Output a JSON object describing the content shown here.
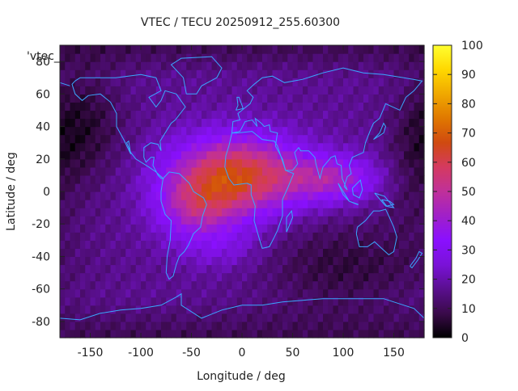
{
  "chart_data": {
    "type": "heatmap",
    "title": "VTEC / TECU 20250912_255.60300",
    "key_label": "'vtec_",
    "xlabel": "Longitude / deg",
    "ylabel": "Latitude / deg",
    "xlim": [
      -180,
      180
    ],
    "ylim": [
      -90,
      90
    ],
    "x_ticks": [
      -150,
      -100,
      -50,
      0,
      50,
      100,
      150
    ],
    "y_ticks": [
      -80,
      -60,
      -40,
      -20,
      0,
      20,
      40,
      60,
      80
    ],
    "colorbar": {
      "range": [
        0,
        100
      ],
      "ticks": [
        0,
        10,
        20,
        30,
        40,
        50,
        60,
        70,
        80,
        90,
        100
      ],
      "palette": [
        "#000000",
        "#3a0a4a",
        "#5a0f8f",
        "#7a12d8",
        "#8a10ff",
        "#a020c8",
        "#c0309a",
        "#d43a60",
        "#d04a10",
        "#e07800",
        "#f0a800",
        "#ffd800",
        "#ffff30"
      ]
    },
    "grid": {
      "lon_step": 5,
      "lat_step": 5
    },
    "field_model": {
      "background": 17,
      "components": [
        {
          "lon": -5,
          "lat": 10,
          "lon_width": 45,
          "lat_width": 17,
          "amplitude": 48
        },
        {
          "lon": -45,
          "lat": -10,
          "lon_width": 28,
          "lat_width": 14,
          "amplitude": 22
        },
        {
          "lon": 90,
          "lat": 8,
          "lon_width": 32,
          "lat_width": 10,
          "amplitude": 24
        },
        {
          "lon": -20,
          "lat": -35,
          "lon_width": 30,
          "lat_width": 10,
          "amplitude": 8
        },
        {
          "lon": -160,
          "lat": 40,
          "lon_width": 30,
          "lat_width": 25,
          "amplitude": -12
        },
        {
          "lon": 100,
          "lat": -45,
          "lon_width": 60,
          "lat_width": 20,
          "amplitude": -10
        },
        {
          "lon": 170,
          "lat": 10,
          "lon_width": 20,
          "lat_width": 30,
          "amplitude": -6
        }
      ],
      "polar_low": {
        "north_lat": 70,
        "south_lat": -65,
        "drop": 8
      }
    },
    "map_overlay": "world coastlines (cyan)",
    "coast_color": "#3aa8ff"
  }
}
